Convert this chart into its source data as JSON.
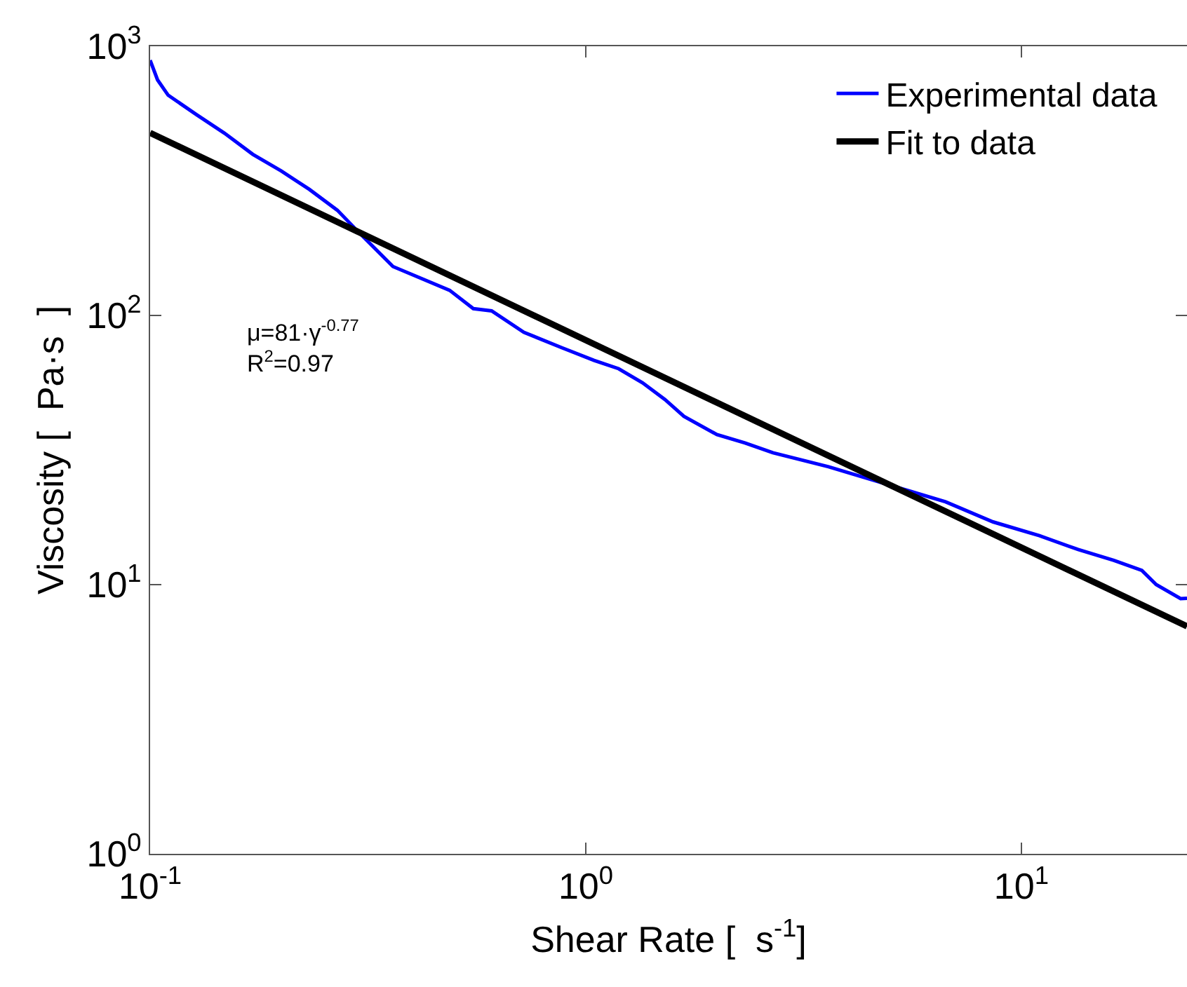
{
  "chart_data": {
    "type": "line",
    "xlabel": "Shear Rate [  s$^{-1}$]",
    "ylabel": "Viscosity [  Pa·s  ]",
    "log": "xy",
    "legend": "top right",
    "marker": "none",
    "line_style": "solid",
    "xlim": [
      0.1,
      24
    ],
    "ylim": [
      1,
      1000
    ],
    "xticks": [
      {
        "value": 0.1,
        "label": "10$^{-1}$"
      },
      {
        "value": 1,
        "label": "10$^{0}$"
      },
      {
        "value": 10,
        "label": "10$^{1}$"
      }
    ],
    "yticks": [
      {
        "value": 1,
        "label": "10$^{0}$"
      },
      {
        "value": 10,
        "label": "10$^{1}$"
      },
      {
        "value": 100,
        "label": "10$^{2}$"
      },
      {
        "value": 1000,
        "label": "10$^{3}$"
      }
    ],
    "series": [
      {
        "name": "Experimental data",
        "color": "#0000ff",
        "x": [
          0.1,
          0.104,
          0.11,
          0.128,
          0.148,
          0.172,
          0.2,
          0.232,
          0.269,
          0.3,
          0.361,
          0.487,
          0.552,
          0.608,
          0.721,
          0.881,
          1.045,
          1.19,
          1.35,
          1.52,
          1.68,
          2.0,
          2.32,
          2.69,
          3.61,
          4.29,
          5.52,
          6.7,
          8.61,
          11.0,
          13.5,
          16.3,
          18.9,
          20.4,
          23.2,
          24
        ],
        "values": [
          887,
          750,
          658,
          556,
          476,
          397,
          344,
          294,
          246,
          205,
          152,
          124,
          106,
          104,
          86.6,
          75.9,
          68.1,
          63.4,
          56.2,
          48.7,
          42.2,
          36.1,
          33.6,
          30.9,
          27.4,
          25.2,
          22.3,
          20.3,
          17.1,
          15.2,
          13.5,
          12.3,
          11.3,
          10.0,
          8.87,
          8.9
        ]
      },
      {
        "name": "Fit to data",
        "color": "#000000",
        "x": [
          0.1,
          24
        ],
        "values": [
          477,
          7.0
        ]
      }
    ],
    "annotations": [
      "μ=81·γ$^{-0.77}$",
      "R$^{2}$=0.97"
    ]
  }
}
